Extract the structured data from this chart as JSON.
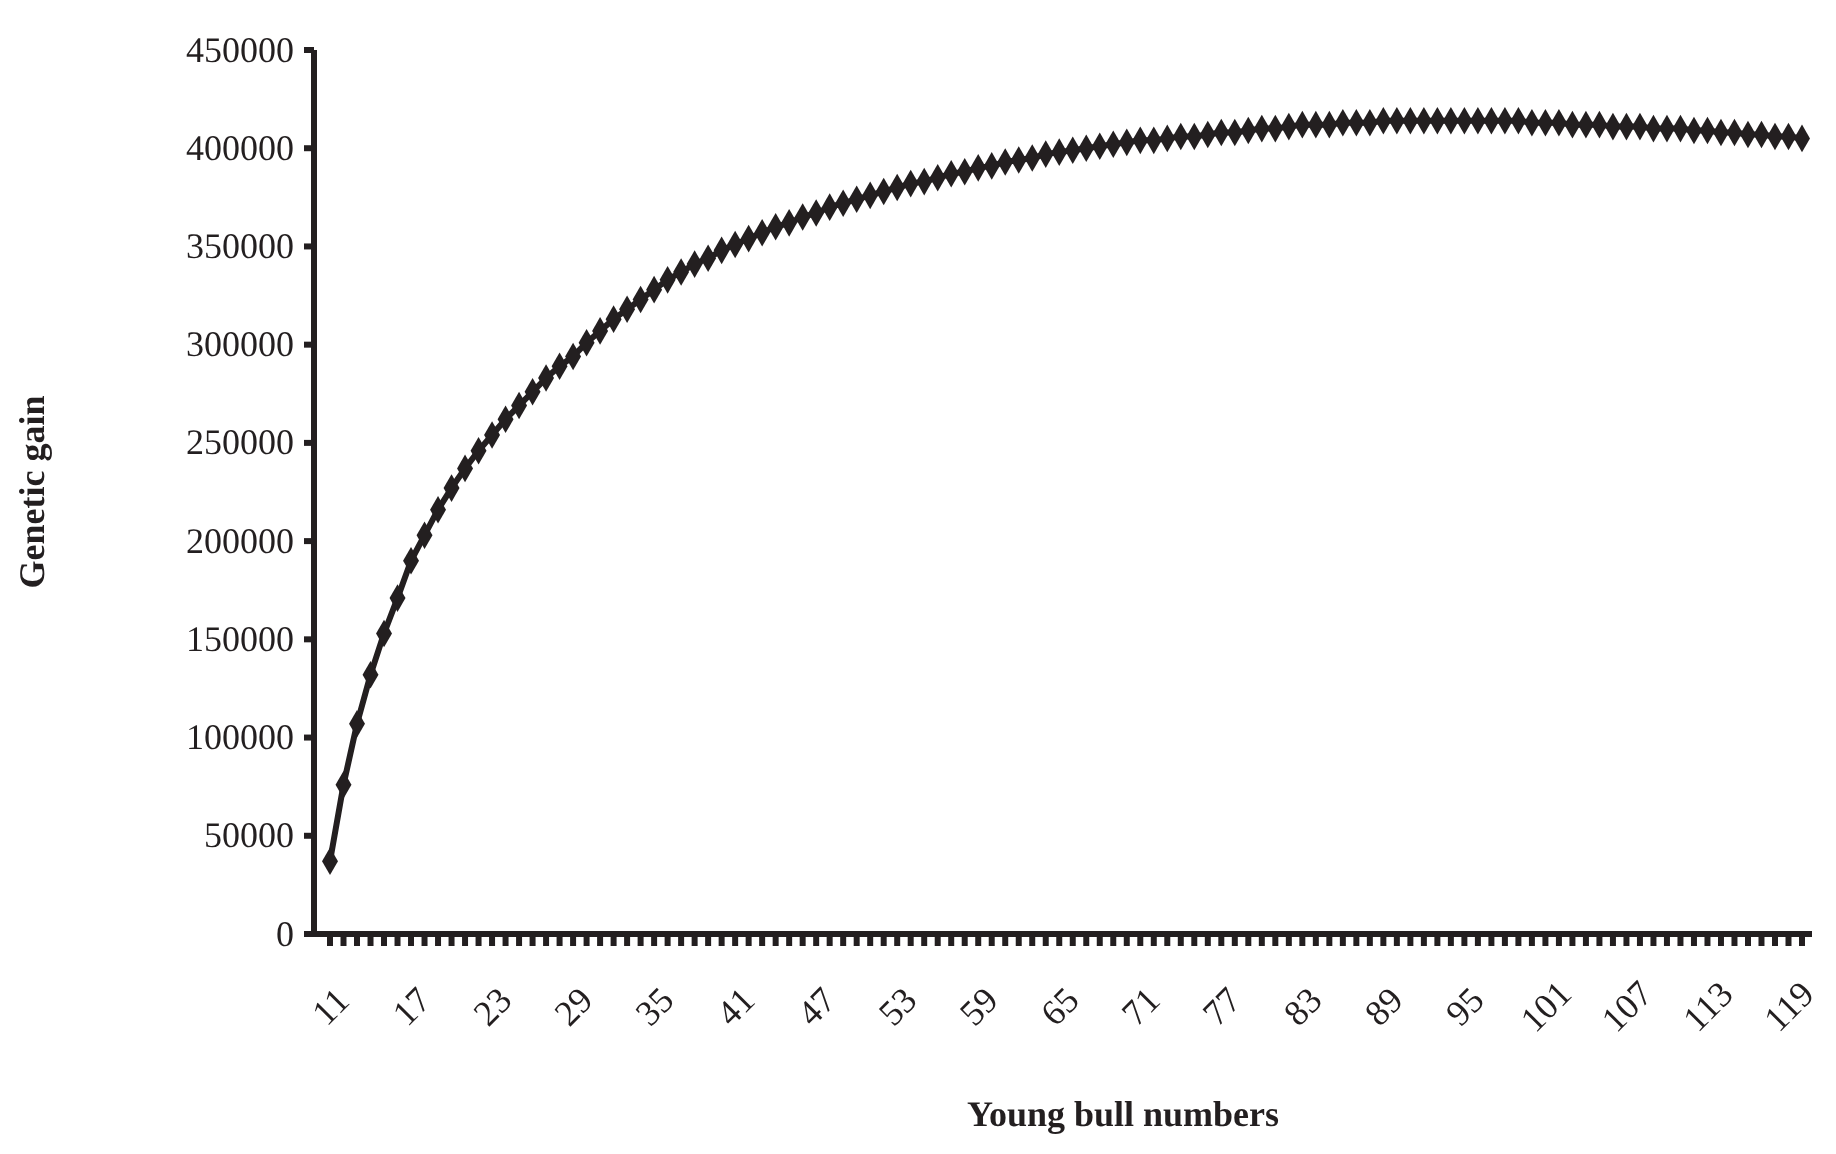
{
  "chart_data": {
    "type": "line",
    "xlabel": "Young bull numbers",
    "ylabel": "Genetic gain",
    "categories": [
      "11",
      null,
      null,
      null,
      null,
      null,
      "17",
      null,
      null,
      null,
      null,
      null,
      "23",
      null,
      null,
      null,
      null,
      null,
      "29",
      null,
      null,
      null,
      null,
      null,
      "35",
      null,
      null,
      null,
      null,
      null,
      "41",
      null,
      null,
      null,
      null,
      null,
      "47",
      null,
      null,
      null,
      null,
      null,
      "53",
      null,
      null,
      null,
      null,
      null,
      "59",
      null,
      null,
      null,
      null,
      null,
      "65",
      null,
      null,
      null,
      null,
      null,
      "71",
      null,
      null,
      null,
      null,
      null,
      "77",
      null,
      null,
      null,
      null,
      null,
      "83",
      null,
      null,
      null,
      null,
      null,
      "89",
      null,
      null,
      null,
      null,
      null,
      "95",
      null,
      null,
      null,
      null,
      null,
      "101",
      null,
      null,
      null,
      null,
      null,
      "107",
      null,
      null,
      null,
      null,
      null,
      "113",
      null,
      null,
      null,
      null,
      null,
      "119",
      null
    ],
    "series": [
      {
        "color": "#231f20",
        "values": [
          37000,
          76000,
          107000,
          132000,
          153000,
          171000,
          190000,
          203000,
          216000,
          227000,
          237000,
          246000,
          254000,
          262000,
          269000,
          276000,
          283000,
          289000,
          294000,
          301000,
          307000,
          313000,
          318000,
          323000,
          328000,
          333000,
          337000,
          341000,
          344000,
          348000,
          351000,
          354000,
          357000,
          360000,
          362000,
          365000,
          367000,
          370000,
          372000,
          374000,
          376000,
          378000,
          380000,
          382000,
          383000,
          385000,
          387000,
          388000,
          390000,
          391000,
          393000,
          394000,
          395000,
          397000,
          398000,
          399000,
          400000,
          401000,
          402000,
          403000,
          404000,
          404000,
          405000,
          406000,
          406000,
          407000,
          408000,
          408000,
          409000,
          410000,
          410000,
          411000,
          412000,
          412000,
          412000,
          413000,
          413000,
          413000,
          414000,
          414000,
          414000,
          414000,
          414000,
          414000,
          414000,
          414000,
          414000,
          414000,
          414000,
          413000,
          413000,
          413000,
          412000,
          412000,
          412000,
          411000,
          411000,
          411000,
          410000,
          410000,
          410000,
          409000,
          409000,
          408000,
          408000,
          407000,
          407000,
          406000,
          406000,
          405000
        ]
      }
    ],
    "ylim": [
      0,
      450000
    ],
    "yticks": [
      0,
      50000,
      100000,
      150000,
      200000,
      250000,
      300000,
      350000,
      400000,
      450000
    ],
    "grid": false,
    "marker": "diamond",
    "line_style": "solid"
  }
}
